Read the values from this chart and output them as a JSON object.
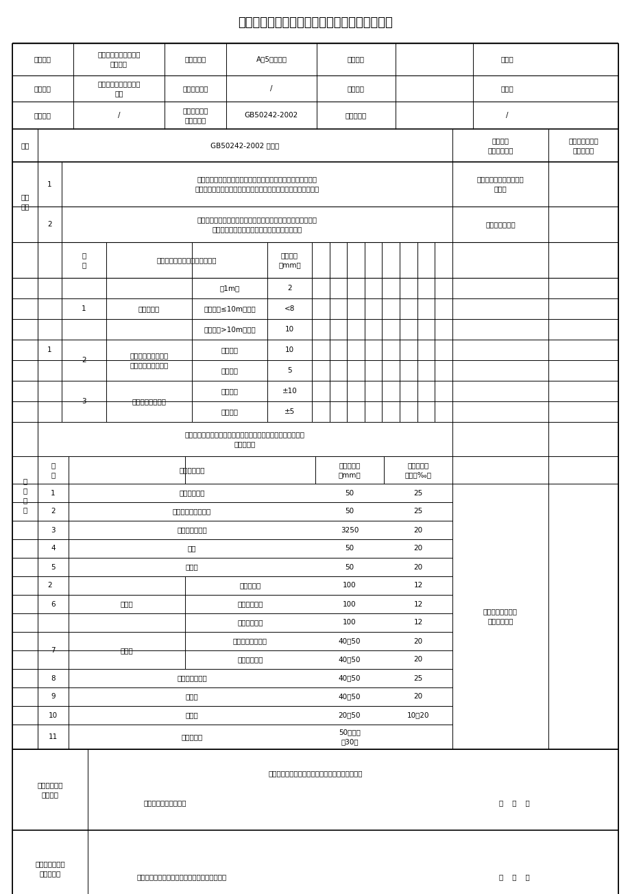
{
  "title": "卫生器具排水配件安装工程检验批质量验收记录",
  "fs": 7.5,
  "header": [
    [
      "工程名称",
      "吴江知音大酒店盛泽店\n装饰工程",
      "检验批部位",
      "A区5层卫生间",
      "项目经理",
      "胡为庆"
    ],
    [
      "施工单位",
      "苏州万业装饰工程有限\n公司",
      "分包项目经理",
      "/",
      "专业工长",
      "施新华"
    ],
    [
      "分包单位",
      "/",
      "施工执行标准\n名称及编号",
      "GB50242-2002",
      "施工班组长",
      "/"
    ]
  ],
  "zk_items": [
    [
      "1",
      "与排水横管连接的各卫生器具的受水和立管均应采取妥善可靠的\n固定措施；管道与楼板的结合部位应采取牢固可靠的防漏防渗措施",
      "管道与楼板结合部已做防\n水处理"
    ],
    [
      "2",
      "连接卫生器具的排水管道接口应紧密不漏，其固定支架、管卡等\n支撑位置应正确、牢固，与管道的接触应平整。",
      "接口紧密、平整"
    ]
  ],
  "meas_items": [
    {
      "proj": "1",
      "name": "横管弯曲度",
      "subs": [
        {
          "desc": "每1m长",
          "val": "2"
        },
        {
          "desc": "横管长度≤10m，全长",
          "val": "<8"
        },
        {
          "desc": "横管长度>10m，全长",
          "val": "10"
        }
      ]
    },
    {
      "proj": "2",
      "name": "卫生器具的排水支管\n及横支管的纵横坐标",
      "subs": [
        {
          "desc": "单独器具",
          "val": "10"
        },
        {
          "desc": "成排器具",
          "val": "5"
        }
      ]
    },
    {
      "proj": "3",
      "name": "卫生器具接口标高",
      "subs": [
        {
          "desc": "单独器具",
          "val": "±10"
        },
        {
          "desc": "成排器具",
          "val": "±5"
        }
      ]
    }
  ],
  "pipe_intro": "连接卫生器具的排水管径和最小坡度，如无设计要求时，应符合\n下表规定。",
  "pipe_groups": [
    {
      "num": "1",
      "name": "污水盆（池）",
      "sub": "",
      "diam": "50",
      "slope": "25"
    },
    {
      "num": "2",
      "name": "单双格洗涤盆（池）",
      "sub": "",
      "diam": "50",
      "slope": "25"
    },
    {
      "num": "3",
      "name": "洗手盆、洗脸盆",
      "sub": "",
      "diam": "3250",
      "slope": "20"
    },
    {
      "num": "4",
      "name": "浴盆",
      "sub": "",
      "diam": "50",
      "slope": "20"
    },
    {
      "num": "5",
      "name": "淋浴器",
      "sub": "",
      "diam": "50",
      "slope": "20"
    },
    {
      "num": "6",
      "name": "大便器",
      "sub": "高、低水箱",
      "diam": "100",
      "slope": "12"
    },
    {
      "num": "6",
      "name": "大便器",
      "sub": "自闭式冲洗阀",
      "diam": "100",
      "slope": "12"
    },
    {
      "num": "6",
      "name": "大便器",
      "sub": "拉管式冲洗阀",
      "diam": "100",
      "slope": "12"
    },
    {
      "num": "7",
      "name": "小便器",
      "sub": "手动自闭式冲洗阀",
      "diam": "40～50",
      "slope": "20"
    },
    {
      "num": "7",
      "name": "小便器",
      "sub": "自动冲洗水箱",
      "diam": "40～50",
      "slope": "20"
    },
    {
      "num": "8",
      "name": "化验盆（无塞）",
      "sub": "",
      "diam": "40～50",
      "slope": "25"
    },
    {
      "num": "9",
      "name": "净身器",
      "sub": "",
      "diam": "40～50",
      "slope": "20"
    },
    {
      "num": "10",
      "name": "饮水机",
      "sub": "",
      "diam": "20～50",
      "slope": "10～20"
    },
    {
      "num": "11",
      "name": "家用洗衣机",
      "sub": "",
      "diam": "50（软管\n为30）",
      "slope": ""
    }
  ],
  "pipe_annotation": "排水管径和最小坡\n度均符合规定",
  "eval_label": "施工单位检查\n评定结果",
  "eval_text": "经现场检查各项均符合质量验收规范评定为合格。",
  "eval_signer": "项目专业质量检查员：",
  "eval_date": "年    月    日",
  "sup_label": "监理（建设）单\n位验收结论",
  "sup_signer": "监理工程师（建设单位项目专业技术负责人）：",
  "sup_date": "年    月    日"
}
